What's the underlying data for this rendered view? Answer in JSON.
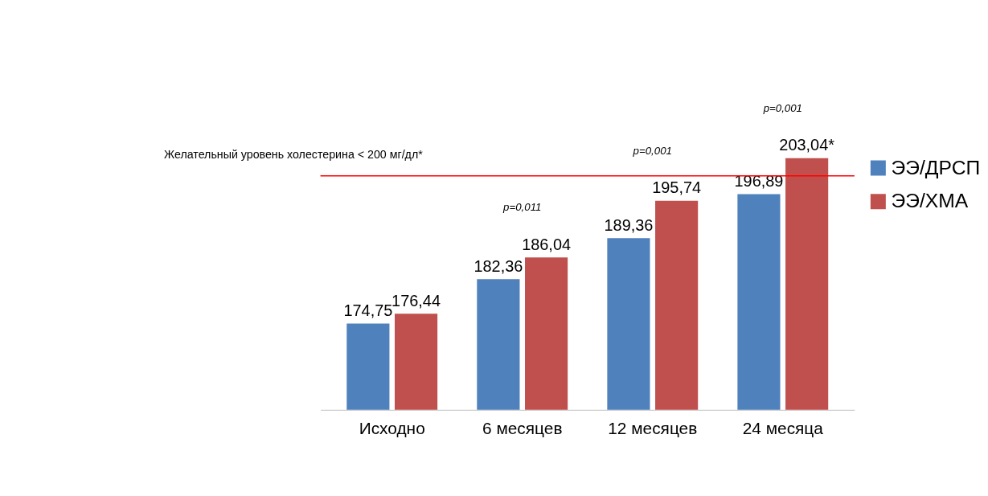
{
  "chart_data": {
    "type": "bar",
    "categories": [
      "Исходно",
      "6 месяцев",
      "12 месяцев",
      "24 месяца"
    ],
    "series": [
      {
        "name": "ЭЭ/ДРСП",
        "color": "#4f81bd",
        "values": [
          174.75,
          182.36,
          189.36,
          196.89
        ],
        "value_labels": [
          "174,75",
          "182,36",
          "189,36",
          "196,89"
        ]
      },
      {
        "name": "ЭЭ/ХМА",
        "color": "#c0504d",
        "values": [
          176.44,
          186.04,
          195.74,
          203.04
        ],
        "value_labels": [
          "176,44",
          "186,04",
          "195,74",
          "203,04*"
        ]
      }
    ],
    "ylim": [
      160,
      203.04
    ],
    "ref_lines": [
      {
        "axis": "y",
        "value": 200,
        "label": "Желательный уровень холестерина < 200 мг/дл*",
        "color": "#ff0000"
      }
    ],
    "annotations": [
      "p=0,011",
      "p=0,001",
      "p=0,001"
    ],
    "legend": "right",
    "grid": false
  }
}
